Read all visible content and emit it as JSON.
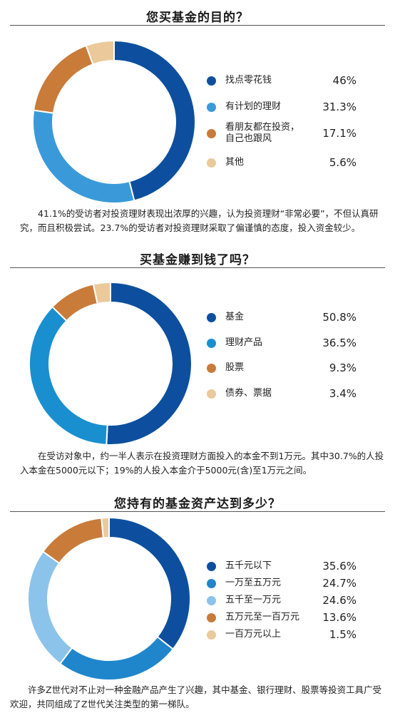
{
  "chart_data": [
    {
      "type": "pie",
      "title": "您买基金的目的？",
      "categories": [
        "找点零花钱",
        "有计划的理财",
        "看朋友都在投资，\n自己也跟风",
        "其他"
      ],
      "values": [
        46,
        31.3,
        17.1,
        5.6
      ],
      "value_labels": [
        "46%",
        "31.3%",
        "17.1%",
        "5.6%"
      ],
      "colors": [
        "#0d4f9e",
        "#3a9ad9",
        "#c97b3a",
        "#ebc99a"
      ],
      "note": "41.1%的受访者对投资理财表现出浓厚的兴趣，认为投资理财“非常必要”，不但认真研究，而且积极尝试。23.7%的受访者对投资理财采取了偏谨慎的态度，投入资金较少。"
    },
    {
      "type": "pie",
      "title": "买基金赚到钱了吗？",
      "categories": [
        "基金",
        "理财产品",
        "股票",
        "债券、票据"
      ],
      "values": [
        50.8,
        36.5,
        9.3,
        3.4
      ],
      "value_labels": [
        "50.8%",
        "36.5%",
        "9.3%",
        "3.4%"
      ],
      "colors": [
        "#0d4f9e",
        "#1a8fd0",
        "#c97b3a",
        "#ebc99a"
      ],
      "note": "在受访对象中，约一半人表示在投资理财方面投入的本金不到1万元。其中30.7%的人投入本金在5000元以下；19%的人投入本金介于5000元(含)至1万元之间。"
    },
    {
      "type": "pie",
      "title": "您持有的基金资产达到多少？",
      "categories": [
        "五千元以下",
        "一万至五万元",
        "五千至一万元",
        "五万元至一百万元",
        "一百万元以上"
      ],
      "values": [
        35.6,
        24.7,
        24.6,
        13.6,
        1.5
      ],
      "value_labels": [
        "35.6%",
        "24.7%",
        "24.6%",
        "13.6%",
        "1.5%"
      ],
      "colors": [
        "#0d4f9e",
        "#1f86cc",
        "#8cc3ea",
        "#c97b3a",
        "#ebc99a"
      ],
      "note": "许多Z世代对不止对一种金融产品产生了兴趣，其中基金、银行理财、股票等投资工具广受欢迎，共同组成了Z世代关注类型的第一梯队。"
    }
  ]
}
